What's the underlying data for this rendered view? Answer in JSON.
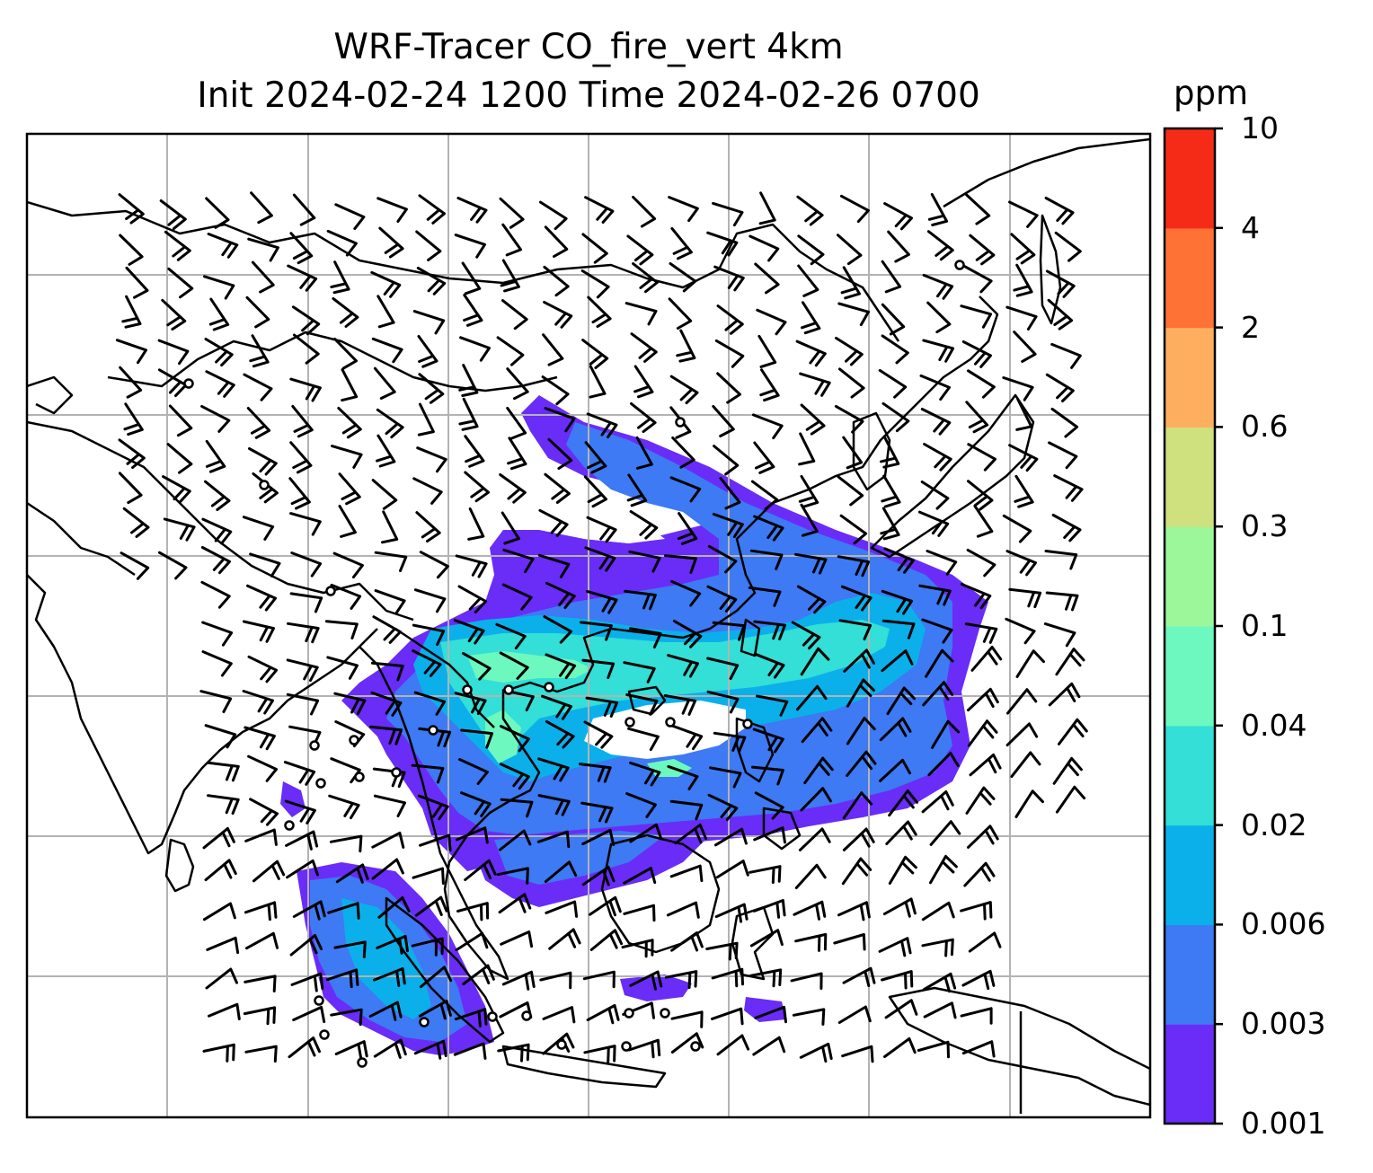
{
  "title_line1": "WRF-Tracer CO_fire_vert 4km",
  "title_line2": "Init 2024-02-24 1200 Time 2024-02-26 0700",
  "colorbar": {
    "unit": "ppm",
    "tick_labels": [
      "0.001",
      "0.003",
      "0.006",
      "0.02",
      "0.04",
      "0.1",
      "0.3",
      "0.6",
      "2",
      "4",
      "10"
    ],
    "colors": [
      "#6a2cf7",
      "#3d7af3",
      "#0bb0ea",
      "#33dfd6",
      "#6cf8bf",
      "#9cf79a",
      "#cfe07f",
      "#fdaf5f",
      "#fe7236",
      "#f62b17"
    ]
  },
  "map": {
    "gridlines": true,
    "fill_colors": {
      "lowest": "#6a2cf7",
      "low": "#3d7af3",
      "mid": "#0bb0ea",
      "upper": "#33dfd6",
      "high": "#6cf8bf"
    },
    "coastline_color": "#000000",
    "grid_color": "#b3b3b3",
    "barb_color": "#000000",
    "calm_marker": "circle"
  }
}
